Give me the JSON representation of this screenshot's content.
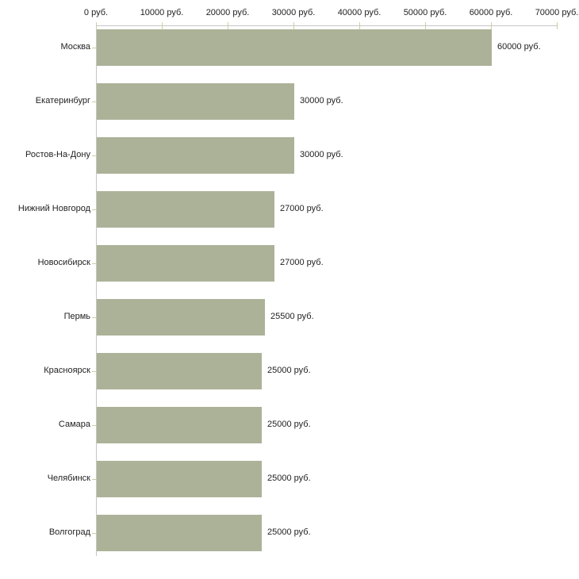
{
  "chart_data": {
    "type": "bar",
    "orientation": "horizontal",
    "title": "",
    "xlabel": "",
    "ylabel": "",
    "categories": [
      "Москва",
      "Екатеринбург",
      "Ростов-На-Дону",
      "Нижний Новгород",
      "Новосибирск",
      "Пермь",
      "Красноярск",
      "Самара",
      "Челябинск",
      "Волгоград"
    ],
    "values": [
      60000,
      30000,
      30000,
      27000,
      27000,
      25500,
      25000,
      25000,
      25000,
      25000
    ],
    "value_labels": [
      "60000 руб.",
      "30000 руб.",
      "30000 руб.",
      "27000 руб.",
      "27000 руб.",
      "25500 руб.",
      "25000 руб.",
      "25000 руб.",
      "25000 руб.",
      "25000 руб."
    ],
    "x_axis": {
      "position": "top",
      "min": 0,
      "max": 70000,
      "ticks": [
        0,
        10000,
        20000,
        30000,
        40000,
        50000,
        60000,
        70000
      ],
      "tick_labels": [
        "0 руб.",
        "10000 руб.",
        "20000 руб.",
        "30000 руб.",
        "40000 руб.",
        "50000 руб.",
        "60000 руб.",
        "70000 руб."
      ]
    },
    "grid": false,
    "legend": false,
    "colors": {
      "bar": "#abb298",
      "axis_line": "#c5c5c5",
      "tick": "#d0cda1",
      "text": "#222222",
      "background": "#ffffff"
    }
  }
}
